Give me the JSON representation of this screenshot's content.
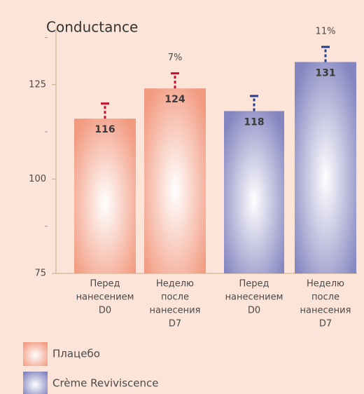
{
  "chart_data": {
    "type": "bar",
    "title": "Conductance",
    "categories": [
      [
        "Перед",
        "нанесением",
        "D0"
      ],
      [
        "Неделю",
        "после",
        "нанесения",
        "D7"
      ],
      [
        "Перед",
        "нанесением",
        "D0"
      ],
      [
        "Неделю",
        "после",
        "нанесения",
        "D7"
      ]
    ],
    "series": [
      {
        "name": "Плацебо",
        "color": "#f29a80",
        "error_color": "#c8102e",
        "values": [
          116,
          124,
          null,
          null
        ],
        "errors": [
          4,
          4,
          null,
          null
        ]
      },
      {
        "name": "Crème Reviviscence",
        "color": "#8484c0",
        "error_color": "#1f3f8f",
        "values": [
          null,
          null,
          118,
          131
        ],
        "errors": [
          null,
          null,
          4,
          4
        ]
      }
    ],
    "annotations": [
      null,
      "7%",
      null,
      "11%"
    ],
    "ylim": [
      75,
      140
    ],
    "yticks": [
      75,
      100,
      125
    ],
    "yminor": [
      87.5,
      112.5,
      137.5
    ]
  }
}
